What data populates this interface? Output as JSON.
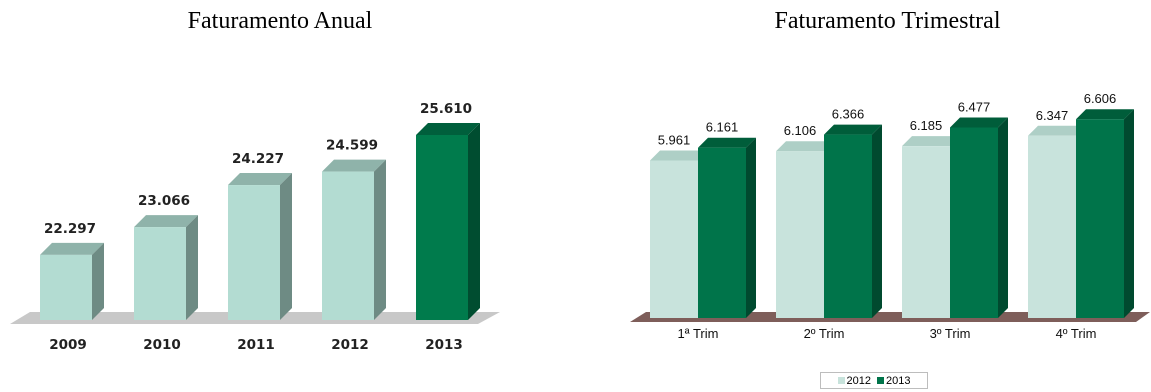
{
  "chart_data": [
    {
      "type": "bar",
      "title": "Faturamento Anual",
      "categories": [
        "2009",
        "2010",
        "2011",
        "2012",
        "2013"
      ],
      "values": [
        22297,
        23066,
        24227,
        24599,
        25610
      ],
      "value_labels": [
        "22.297",
        "23.066",
        "24.227",
        "24.599",
        "25.610"
      ],
      "ylim": [
        20500,
        26300
      ],
      "grid": false,
      "colors": {
        "default_front": "#b3dcd2",
        "default_side": "#6e8b84",
        "default_top": "#8fb3aa",
        "highlight_front": "#007b4c",
        "highlight_side": "#004d30",
        "highlight_top": "#005f3c",
        "floor": "#c8c8c8"
      },
      "highlight_index": 4
    },
    {
      "type": "bar",
      "title": "Faturamento Trimestral",
      "categories": [
        "1ª Trim",
        "2º Trim",
        "3º Trim",
        "4º Trim"
      ],
      "series": [
        {
          "name": "2012",
          "values": [
            5961,
            6106,
            6185,
            6347
          ],
          "value_labels": [
            "5.961",
            "6.106",
            "6.185",
            "6.347"
          ],
          "color": "#c8e3dc",
          "side_color": "#9ec2b8",
          "top_color": "#aecfc6"
        },
        {
          "name": "2013",
          "values": [
            6161,
            6366,
            6477,
            6606
          ],
          "value_labels": [
            "6.161",
            "6.366",
            "6.477",
            "6.606"
          ],
          "color": "#00744a",
          "side_color": "#004a2f",
          "top_color": "#005d3a"
        }
      ],
      "ylim": [
        3500,
        6750
      ],
      "grid": false,
      "legend_position": "bottom-center",
      "floor_color": "#7e5e5a"
    }
  ]
}
